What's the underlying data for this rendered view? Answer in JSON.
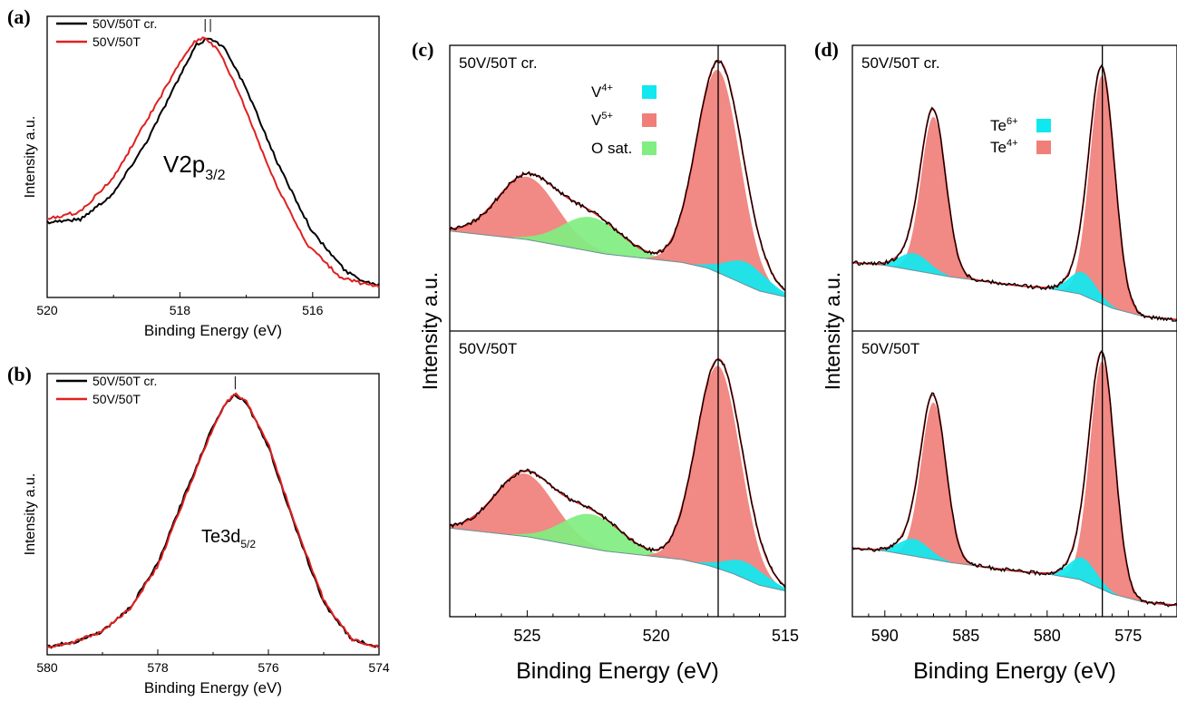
{
  "chart_data": [
    {
      "id": "a",
      "type": "line",
      "panel_label": "(a)",
      "xlabel": "Binding Energy (eV)",
      "ylabel": "Intensity a.u.",
      "xlim": [
        520,
        515
      ],
      "x_reversed": true,
      "xticks": [
        520,
        518,
        516
      ],
      "ylim": [
        0,
        1.08
      ],
      "annotation": {
        "main": "V2p",
        "sub": "3/2"
      },
      "marker_lines_x": [
        517.62,
        517.54
      ],
      "legend": [
        {
          "name": "50V/50T cr.",
          "color": "#000000"
        },
        {
          "name": "50V/50T",
          "color": "#e02020"
        }
      ],
      "series": [
        {
          "name": "50V/50T cr.",
          "color": "#000000",
          "x": [
            520,
            519.5,
            519.0,
            518.5,
            518.0,
            517.75,
            517.55,
            517.3,
            517.0,
            516.5,
            516.0,
            515.5,
            515.2,
            515
          ],
          "y": [
            0.29,
            0.3,
            0.4,
            0.6,
            0.85,
            0.97,
            1.0,
            0.95,
            0.8,
            0.5,
            0.25,
            0.1,
            0.06,
            0.05
          ]
        },
        {
          "name": "50V/50T",
          "color": "#e02020",
          "x": [
            520,
            519.5,
            519.0,
            518.5,
            518.0,
            517.8,
            517.62,
            517.4,
            517.1,
            516.6,
            516.1,
            515.6,
            515.2,
            515
          ],
          "y": [
            0.3,
            0.33,
            0.46,
            0.68,
            0.9,
            0.98,
            1.0,
            0.94,
            0.78,
            0.46,
            0.21,
            0.08,
            0.05,
            0.04
          ]
        }
      ]
    },
    {
      "id": "b",
      "type": "line",
      "panel_label": "(b)",
      "xlabel": "Binding Energy (eV)",
      "ylabel": "Intensity a.u.",
      "xlim": [
        580,
        574
      ],
      "x_reversed": true,
      "xticks": [
        580,
        578,
        576,
        574
      ],
      "ylim": [
        0,
        1.08
      ],
      "annotation": {
        "main": "Te3d",
        "sub": "5/2"
      },
      "marker_lines_x": [
        576.6
      ],
      "legend": [
        {
          "name": "50V/50T cr.",
          "color": "#000000"
        },
        {
          "name": "50V/50T",
          "color": "#e02020"
        }
      ],
      "series": [
        {
          "name": "50V/50T cr.",
          "color": "#000000",
          "x": [
            580,
            579.5,
            579.0,
            578.5,
            578.0,
            577.5,
            577.0,
            576.8,
            576.6,
            576.4,
            576.0,
            575.5,
            575.0,
            574.5,
            574
          ],
          "y": [
            0.03,
            0.05,
            0.09,
            0.18,
            0.35,
            0.62,
            0.88,
            0.96,
            1.0,
            0.97,
            0.8,
            0.48,
            0.2,
            0.06,
            0.03
          ]
        },
        {
          "name": "50V/50T",
          "color": "#e02020",
          "x": [
            580,
            579.5,
            579.0,
            578.5,
            578.0,
            577.5,
            577.0,
            576.8,
            576.6,
            576.4,
            576.0,
            575.5,
            575.0,
            574.5,
            574
          ],
          "y": [
            0.03,
            0.05,
            0.09,
            0.18,
            0.34,
            0.61,
            0.87,
            0.96,
            1.0,
            0.97,
            0.81,
            0.49,
            0.21,
            0.06,
            0.03
          ]
        }
      ]
    },
    {
      "id": "c",
      "type": "area",
      "panel_label": "(c)",
      "xlabel": "Binding Energy (eV)",
      "ylabel": "Intensity a.u.",
      "xlim": [
        528,
        515
      ],
      "x_reversed": true,
      "xticks": [
        525,
        520,
        515
      ],
      "ylim": [
        0,
        1.0
      ],
      "marker_line_x": 517.6,
      "legend": [
        {
          "name": "V",
          "sup": "4+",
          "color": "#10e8f0"
        },
        {
          "name": "V",
          "sup": "5+",
          "color": "#f07f7a"
        },
        {
          "name": "O sat.",
          "sup": "",
          "color": "#80ee80"
        }
      ],
      "subplots": [
        {
          "label": "50V/50T cr.",
          "background": {
            "x": [
              528,
              525,
              522,
              520,
              519,
              518,
              517,
              516,
              515
            ],
            "y": [
              0.35,
              0.32,
              0.27,
              0.25,
              0.24,
              0.22,
              0.18,
              0.14,
              0.12
            ]
          },
          "components": [
            {
              "name": "V5+",
              "color": "#f07f7a",
              "center": 525.0,
              "fwhm": 2.7,
              "height": 0.22
            },
            {
              "name": "O sat.",
              "color": "#80ee80",
              "center": 522.5,
              "fwhm": 2.7,
              "height": 0.12
            },
            {
              "name": "V5+",
              "color": "#f07f7a",
              "center": 517.6,
              "fwhm": 2.0,
              "height": 0.71
            },
            {
              "name": "V4+",
              "color": "#10e8f0",
              "center": 516.5,
              "fwhm": 1.9,
              "height": 0.08
            }
          ]
        },
        {
          "label": "50V/50T",
          "background": {
            "x": [
              528,
              525,
              522,
              520,
              519,
              518,
              517,
              516,
              515
            ],
            "y": [
              0.31,
              0.28,
              0.23,
              0.21,
              0.2,
              0.18,
              0.15,
              0.11,
              0.09
            ]
          },
          "components": [
            {
              "name": "V5+",
              "color": "#f07f7a",
              "center": 525.1,
              "fwhm": 2.7,
              "height": 0.22
            },
            {
              "name": "O sat.",
              "color": "#80ee80",
              "center": 522.5,
              "fwhm": 2.7,
              "height": 0.12
            },
            {
              "name": "V5+",
              "color": "#f07f7a",
              "center": 517.6,
              "fwhm": 2.0,
              "height": 0.71
            },
            {
              "name": "V4+",
              "color": "#10e8f0",
              "center": 516.5,
              "fwhm": 1.9,
              "height": 0.06
            }
          ]
        }
      ]
    },
    {
      "id": "d",
      "type": "area",
      "panel_label": "(d)",
      "xlabel": "Binding Energy (eV)",
      "ylabel": "Intensity a.u.",
      "xlim": [
        592,
        572
      ],
      "x_reversed": true,
      "xticks": [
        590,
        585,
        580,
        575
      ],
      "ylim": [
        0,
        1.0
      ],
      "marker_line_x": 576.6,
      "legend": [
        {
          "name": "Te",
          "sup": "6+",
          "color": "#10e8f0"
        },
        {
          "name": "Te",
          "sup": "4+",
          "color": "#f07f7a"
        }
      ],
      "subplots": [
        {
          "label": "50V/50T cr.",
          "background": {
            "x": [
              592,
              590,
              586,
              582,
              580,
              578,
              576,
              574,
              572
            ],
            "y": [
              0.24,
              0.23,
              0.19,
              0.16,
              0.15,
              0.13,
              0.08,
              0.05,
              0.04
            ]
          },
          "components": [
            {
              "name": "Te4+",
              "color": "#f07f7a",
              "center": 587.0,
              "fwhm": 1.8,
              "height": 0.55
            },
            {
              "name": "Te6+",
              "color": "#10e8f0",
              "center": 588.2,
              "fwhm": 2.2,
              "height": 0.06
            },
            {
              "name": "Te4+",
              "color": "#f07f7a",
              "center": 576.6,
              "fwhm": 1.8,
              "height": 0.8
            },
            {
              "name": "Te6+",
              "color": "#10e8f0",
              "center": 577.8,
              "fwhm": 2.0,
              "height": 0.08
            }
          ]
        },
        {
          "label": "50V/50T",
          "background": {
            "x": [
              592,
              590,
              586,
              582,
              580,
              578,
              576,
              574,
              572
            ],
            "y": [
              0.24,
              0.23,
              0.19,
              0.16,
              0.15,
              0.13,
              0.08,
              0.05,
              0.04
            ]
          },
          "components": [
            {
              "name": "Te4+",
              "color": "#f07f7a",
              "center": 587.0,
              "fwhm": 1.8,
              "height": 0.55
            },
            {
              "name": "Te6+",
              "color": "#10e8f0",
              "center": 588.2,
              "fwhm": 2.2,
              "height": 0.06
            },
            {
              "name": "Te4+",
              "color": "#f07f7a",
              "center": 576.6,
              "fwhm": 1.8,
              "height": 0.8
            },
            {
              "name": "Te6+",
              "color": "#10e8f0",
              "center": 577.8,
              "fwhm": 2.0,
              "height": 0.08
            }
          ]
        }
      ]
    }
  ]
}
